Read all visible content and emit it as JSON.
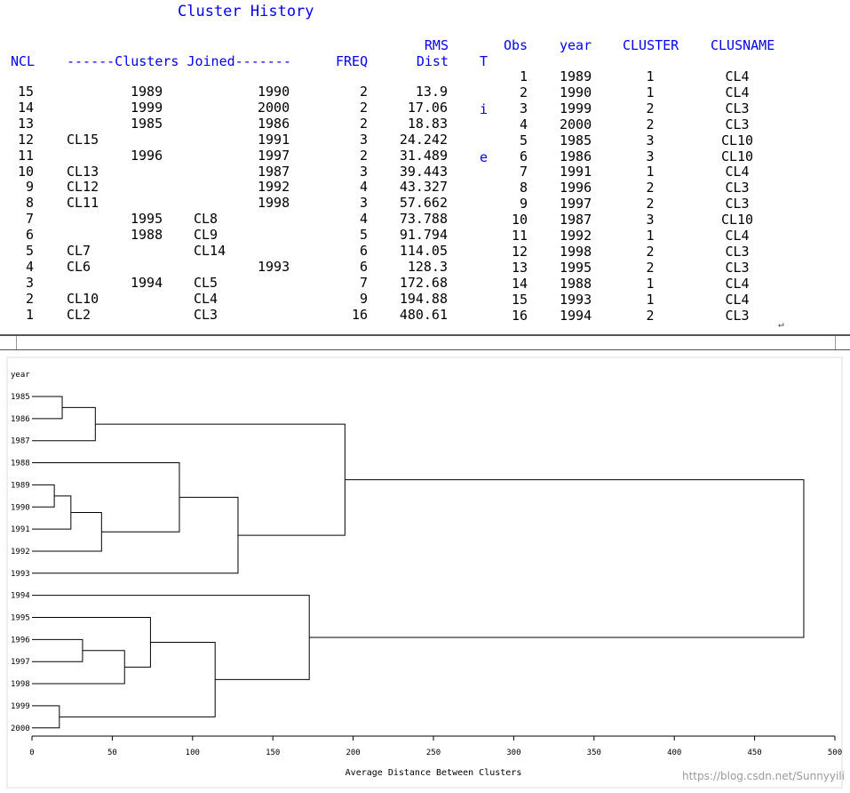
{
  "history": {
    "title": "Cluster History",
    "headers": {
      "ncl": "NCL",
      "joined": "------Clusters Joined-------",
      "freq": "FREQ",
      "rms": "RMS",
      "dist": "Dist",
      "tie": [
        "T",
        "i",
        "e"
      ]
    },
    "rows": [
      {
        "ncl": "15",
        "a": "",
        "b": "1989",
        "c": "",
        "d": "1990",
        "freq": "2",
        "dist": "13.9"
      },
      {
        "ncl": "14",
        "a": "",
        "b": "1999",
        "c": "",
        "d": "2000",
        "freq": "2",
        "dist": "17.06"
      },
      {
        "ncl": "13",
        "a": "",
        "b": "1985",
        "c": "",
        "d": "1986",
        "freq": "2",
        "dist": "18.83"
      },
      {
        "ncl": "12",
        "a": "CL15",
        "b": "",
        "c": "",
        "d": "1991",
        "freq": "3",
        "dist": "24.242"
      },
      {
        "ncl": "11",
        "a": "",
        "b": "1996",
        "c": "",
        "d": "1997",
        "freq": "2",
        "dist": "31.489"
      },
      {
        "ncl": "10",
        "a": "CL13",
        "b": "",
        "c": "",
        "d": "1987",
        "freq": "3",
        "dist": "39.443"
      },
      {
        "ncl": "9",
        "a": "CL12",
        "b": "",
        "c": "",
        "d": "1992",
        "freq": "4",
        "dist": "43.327"
      },
      {
        "ncl": "8",
        "a": "CL11",
        "b": "",
        "c": "",
        "d": "1998",
        "freq": "3",
        "dist": "57.662"
      },
      {
        "ncl": "7",
        "a": "",
        "b": "1995",
        "c": "CL8",
        "d": "",
        "freq": "4",
        "dist": "73.788"
      },
      {
        "ncl": "6",
        "a": "",
        "b": "1988",
        "c": "CL9",
        "d": "",
        "freq": "5",
        "dist": "91.794"
      },
      {
        "ncl": "5",
        "a": "CL7",
        "b": "",
        "c": "CL14",
        "d": "",
        "freq": "6",
        "dist": "114.05"
      },
      {
        "ncl": "4",
        "a": "CL6",
        "b": "",
        "c": "",
        "d": "1993",
        "freq": "6",
        "dist": "128.3"
      },
      {
        "ncl": "3",
        "a": "",
        "b": "1994",
        "c": "CL5",
        "d": "",
        "freq": "7",
        "dist": "172.68"
      },
      {
        "ncl": "2",
        "a": "CL10",
        "b": "",
        "c": "CL4",
        "d": "",
        "freq": "9",
        "dist": "194.88"
      },
      {
        "ncl": "1",
        "a": "CL2",
        "b": "",
        "c": "CL3",
        "d": "",
        "freq": "16",
        "dist": "480.61"
      }
    ]
  },
  "membership": {
    "headers": {
      "obs": "Obs",
      "year": "year",
      "cluster": "CLUSTER",
      "clusname": "CLUSNAME"
    },
    "rows": [
      {
        "obs": "1",
        "year": "1989",
        "cluster": "1",
        "clusname": "CL4"
      },
      {
        "obs": "2",
        "year": "1990",
        "cluster": "1",
        "clusname": "CL4"
      },
      {
        "obs": "3",
        "year": "1999",
        "cluster": "2",
        "clusname": "CL3"
      },
      {
        "obs": "4",
        "year": "2000",
        "cluster": "2",
        "clusname": "CL3"
      },
      {
        "obs": "5",
        "year": "1985",
        "cluster": "3",
        "clusname": "CL10"
      },
      {
        "obs": "6",
        "year": "1986",
        "cluster": "3",
        "clusname": "CL10"
      },
      {
        "obs": "7",
        "year": "1991",
        "cluster": "1",
        "clusname": "CL4"
      },
      {
        "obs": "8",
        "year": "1996",
        "cluster": "2",
        "clusname": "CL3"
      },
      {
        "obs": "9",
        "year": "1997",
        "cluster": "2",
        "clusname": "CL3"
      },
      {
        "obs": "10",
        "year": "1987",
        "cluster": "3",
        "clusname": "CL10"
      },
      {
        "obs": "11",
        "year": "1992",
        "cluster": "1",
        "clusname": "CL4"
      },
      {
        "obs": "12",
        "year": "1998",
        "cluster": "2",
        "clusname": "CL3"
      },
      {
        "obs": "13",
        "year": "1995",
        "cluster": "2",
        "clusname": "CL3"
      },
      {
        "obs": "14",
        "year": "1988",
        "cluster": "1",
        "clusname": "CL4"
      },
      {
        "obs": "15",
        "year": "1993",
        "cluster": "1",
        "clusname": "CL4"
      },
      {
        "obs": "16",
        "year": "1994",
        "cluster": "2",
        "clusname": "CL3"
      }
    ],
    "return_mark": "↵"
  },
  "chart_data": {
    "type": "dendrogram",
    "ylabel": "year",
    "xlabel": "Average Distance Between Clusters",
    "xlim": [
      0,
      500
    ],
    "xticks": [
      0,
      50,
      100,
      150,
      200,
      250,
      300,
      350,
      400,
      450,
      500
    ],
    "leaves": [
      "1985",
      "1986",
      "1987",
      "1988",
      "1989",
      "1990",
      "1991",
      "1992",
      "1993",
      "1994",
      "1995",
      "1996",
      "1997",
      "1998",
      "1999",
      "2000"
    ],
    "merges": [
      {
        "id": "CL15",
        "left": "1989",
        "right": "1990",
        "height": 13.9
      },
      {
        "id": "CL14",
        "left": "1999",
        "right": "2000",
        "height": 17.06
      },
      {
        "id": "CL13",
        "left": "1985",
        "right": "1986",
        "height": 18.83
      },
      {
        "id": "CL12",
        "left": "CL15",
        "right": "1991",
        "height": 24.242
      },
      {
        "id": "CL11",
        "left": "1996",
        "right": "1997",
        "height": 31.489
      },
      {
        "id": "CL10",
        "left": "CL13",
        "right": "1987",
        "height": 39.443
      },
      {
        "id": "CL9",
        "left": "CL12",
        "right": "1992",
        "height": 43.327
      },
      {
        "id": "CL8",
        "left": "CL11",
        "right": "1998",
        "height": 57.662
      },
      {
        "id": "CL7",
        "left": "1995",
        "right": "CL8",
        "height": 73.788
      },
      {
        "id": "CL6",
        "left": "1988",
        "right": "CL9",
        "height": 91.794
      },
      {
        "id": "CL5",
        "left": "CL7",
        "right": "CL14",
        "height": 114.05
      },
      {
        "id": "CL4",
        "left": "CL6",
        "right": "1993",
        "height": 128.3
      },
      {
        "id": "CL3",
        "left": "1994",
        "right": "CL5",
        "height": 172.68
      },
      {
        "id": "CL2",
        "left": "CL10",
        "right": "CL4",
        "height": 194.88
      },
      {
        "id": "CL1",
        "left": "CL2",
        "right": "CL3",
        "height": 480.61
      }
    ]
  },
  "watermark": "https://blog.csdn.net/Sunnyyili",
  "colors": {
    "header": "#0000ee",
    "line": "#000000"
  }
}
